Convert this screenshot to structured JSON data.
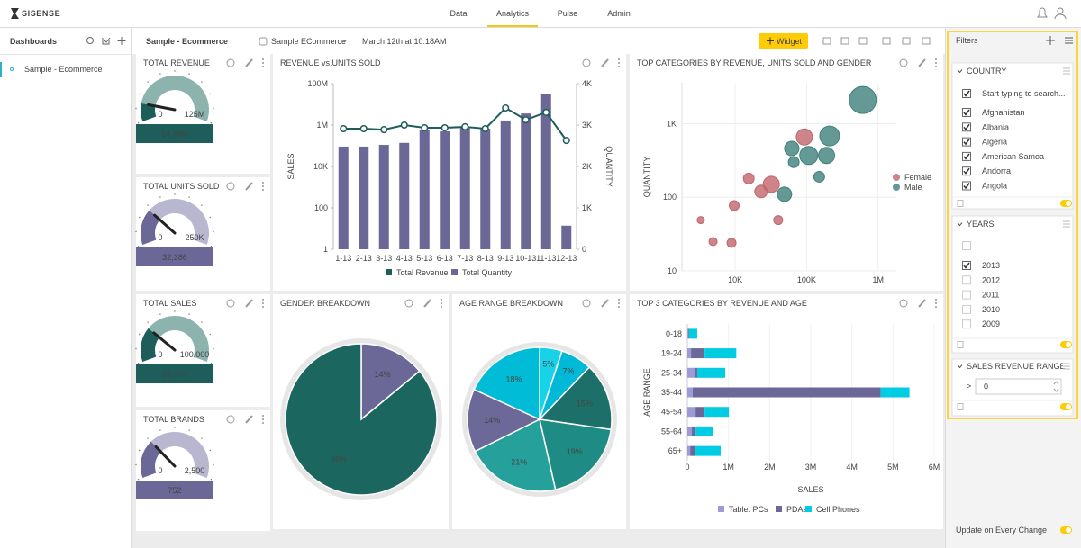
{
  "nav": {
    "logo": "SISENSE",
    "tabs": [
      "Data",
      "Analytics",
      "Pulse",
      "Admin"
    ],
    "active_tab": 1
  },
  "sidebar": {
    "title": "Dashboards",
    "items": [
      "Sample - Ecommerce"
    ]
  },
  "toolbar": {
    "title": "Sample - Ecommerce",
    "datasource": "Sample ECommerce",
    "date": "March 12th at 10:18AM",
    "button": "Widget"
  },
  "kpis": [
    {
      "title": "TOTAL REVENUE",
      "value": "14.48M",
      "min": "0",
      "max": "125M",
      "color": "#1e5e5a",
      "light": "#8db3ae"
    },
    {
      "title": "TOTAL UNITS SOLD",
      "value": "32,386",
      "min": "0",
      "max": "250K",
      "color": "#6b6797",
      "light": "#b8b7cf"
    },
    {
      "title": "TOTAL SALES",
      "value": "26,774",
      "min": "0",
      "max": "100,000",
      "color": "#1e5e5a",
      "light": "#8db3ae"
    },
    {
      "title": "TOTAL BRANDS",
      "value": "752",
      "min": "0",
      "max": "2,500",
      "color": "#6b6797",
      "light": "#b8b7cf"
    }
  ],
  "charts": [
    {
      "type": "combo",
      "title": "REVENUE vs.UNITS SOLD",
      "categories": [
        "1-13",
        "2-13",
        "3-13",
        "4-13",
        "5-13",
        "6-13",
        "7-13",
        "8-13",
        "9-13",
        "10-13",
        "11-13",
        "12-13"
      ],
      "ylabel": "SALES",
      "y2label": "QUANTITY",
      "log": true,
      "ylim": [
        1,
        100000000
      ],
      "yticks": [
        1,
        100,
        {
          "value": 10000,
          "label": "10K"
        },
        {
          "value": 1000000,
          "label": "1M"
        },
        {
          "value": 100000000,
          "label": "100M"
        }
      ],
      "y2lim": [
        0,
        4000
      ],
      "y2ticks": [
        0,
        {
          "value": 1000,
          "label": "1K"
        },
        {
          "value": 2000,
          "label": "2K"
        },
        {
          "value": 3000,
          "label": "3K"
        },
        {
          "value": 4000,
          "label": "4K"
        }
      ],
      "series": [
        {
          "name": "Total Revenue",
          "color": "#1e5e5a",
          "type": "line",
          "values": [
            670000,
            670000,
            600000,
            1000000,
            740000,
            740000,
            820000,
            670000,
            6700000,
            1800000,
            4100000,
            180000
          ]
        },
        {
          "name": "Total Quantity",
          "color": "#6b6797",
          "type": "bar",
          "axis": "y2",
          "values": [
            2480,
            2480,
            2520,
            2570,
            2870,
            2850,
            2960,
            2910,
            3110,
            3280,
            3760,
            570
          ]
        }
      ]
    },
    {
      "type": "scatter",
      "title": "TOP CATEGORIES BY REVENUE, UNITS SOLD AND GENDER",
      "ylabel": "QUANTITY",
      "log": true,
      "grid": true,
      "xlim": [
        1800,
        1800000
      ],
      "ylim": [
        10,
        3600
      ],
      "xticks": [
        {
          "value": 10000,
          "label": "10K"
        },
        {
          "value": 100000,
          "label": "100K"
        },
        {
          "value": 1000000,
          "label": "1M"
        }
      ],
      "yticks": [
        10,
        100,
        {
          "value": 1000,
          "label": "1K"
        }
      ],
      "series": [
        {
          "name": "Female",
          "color": "#c0676b",
          "x": [
            3300,
            4900,
            8900,
            9700,
            15500,
            23000,
            32000,
            40000,
            93000
          ],
          "values": [
            49,
            25,
            24,
            77,
            180,
            120,
            150,
            49,
            660
          ],
          "sizes": [
            4,
            4.5,
            5,
            5.5,
            6,
            7,
            9,
            5,
            9
          ]
        },
        {
          "name": "Male",
          "color": "#3f807b",
          "x": [
            610000,
            210000,
            107000,
            62000,
            66000,
            49000,
            150000,
            190000
          ],
          "values": [
            2100,
            680,
            370,
            460,
            300,
            110,
            190,
            370
          ],
          "sizes": [
            15,
            11,
            10,
            8,
            6,
            8,
            6,
            9
          ]
        }
      ]
    },
    {
      "type": "pie",
      "title": "GENDER BREAKDOWN",
      "values": [
        14,
        86
      ],
      "value_labels": [
        "14%",
        "86%"
      ],
      "colors": [
        "#6b6797",
        "#1c6660"
      ]
    },
    {
      "type": "pie",
      "title": "AGE RANGE BREAKDOWN",
      "values": [
        5,
        7,
        15,
        19,
        21,
        14,
        18
      ],
      "value_labels": [
        "5%",
        "7%",
        "15%",
        "19%",
        "21%",
        "14%",
        "18%"
      ],
      "colors": [
        "#18d2ea",
        "#00b9d6",
        "#1d706a",
        "#1f8b85",
        "#26a09b",
        "#6c6897",
        "#00bcd6"
      ]
    },
    {
      "type": "hbar",
      "title": "TOP 3 CATEGORIES BY REVENUE AND AGE",
      "stacked": true,
      "grid": true,
      "categories": [
        "0-18",
        "19-24",
        "25-34",
        "35-44",
        "45-54",
        "55-64",
        "65+"
      ],
      "xlabel": "SALES",
      "ylabel": "AGE RANGE",
      "xlim": [
        0,
        6000000
      ],
      "xticks": [
        0,
        {
          "value": 1000000,
          "label": "1M"
        },
        {
          "value": 2000000,
          "label": "2M"
        },
        {
          "value": 3000000,
          "label": "3M"
        },
        {
          "value": 4000000,
          "label": "4M"
        },
        {
          "value": 5000000,
          "label": "5M"
        },
        {
          "value": 6000000,
          "label": "6M"
        }
      ],
      "series": [
        {
          "name": "Tablet PCs",
          "color": "#9d9bd6",
          "values": [
            20000,
            90000,
            170000,
            130000,
            200000,
            110000,
            70000
          ]
        },
        {
          "name": "PDAs",
          "color": "#6b6797",
          "values": [
            20000,
            330000,
            70000,
            4570000,
            220000,
            90000,
            110000
          ]
        },
        {
          "name": "Cell Phones",
          "color": "#00cce4",
          "values": [
            200000,
            770000,
            680000,
            700000,
            590000,
            420000,
            630000
          ]
        }
      ]
    }
  ],
  "filters": {
    "title": "Filters",
    "sections": [
      {
        "title": "COUNTRY",
        "search": "Start typing to search...",
        "select_all": true,
        "items": [
          {
            "label": "Afghanistan",
            "checked": true
          },
          {
            "label": "Albania",
            "checked": true
          },
          {
            "label": "Algeria",
            "checked": true
          },
          {
            "label": "American Samoa",
            "checked": true
          },
          {
            "label": "Andorra",
            "checked": true
          },
          {
            "label": "Angola",
            "checked": true
          }
        ]
      },
      {
        "title": "YEARS",
        "select_all": false,
        "items": [
          {
            "label": "2013",
            "checked": true
          },
          {
            "label": "2012",
            "checked": false
          },
          {
            "label": "2011",
            "checked": false
          },
          {
            "label": "2010",
            "checked": false
          },
          {
            "label": "2009",
            "checked": false
          }
        ]
      },
      {
        "title": "SALES REVENUE RANGE",
        "operator": ">",
        "value": "0"
      }
    ],
    "update_label": "Update on Every Change",
    "update_on": true
  }
}
